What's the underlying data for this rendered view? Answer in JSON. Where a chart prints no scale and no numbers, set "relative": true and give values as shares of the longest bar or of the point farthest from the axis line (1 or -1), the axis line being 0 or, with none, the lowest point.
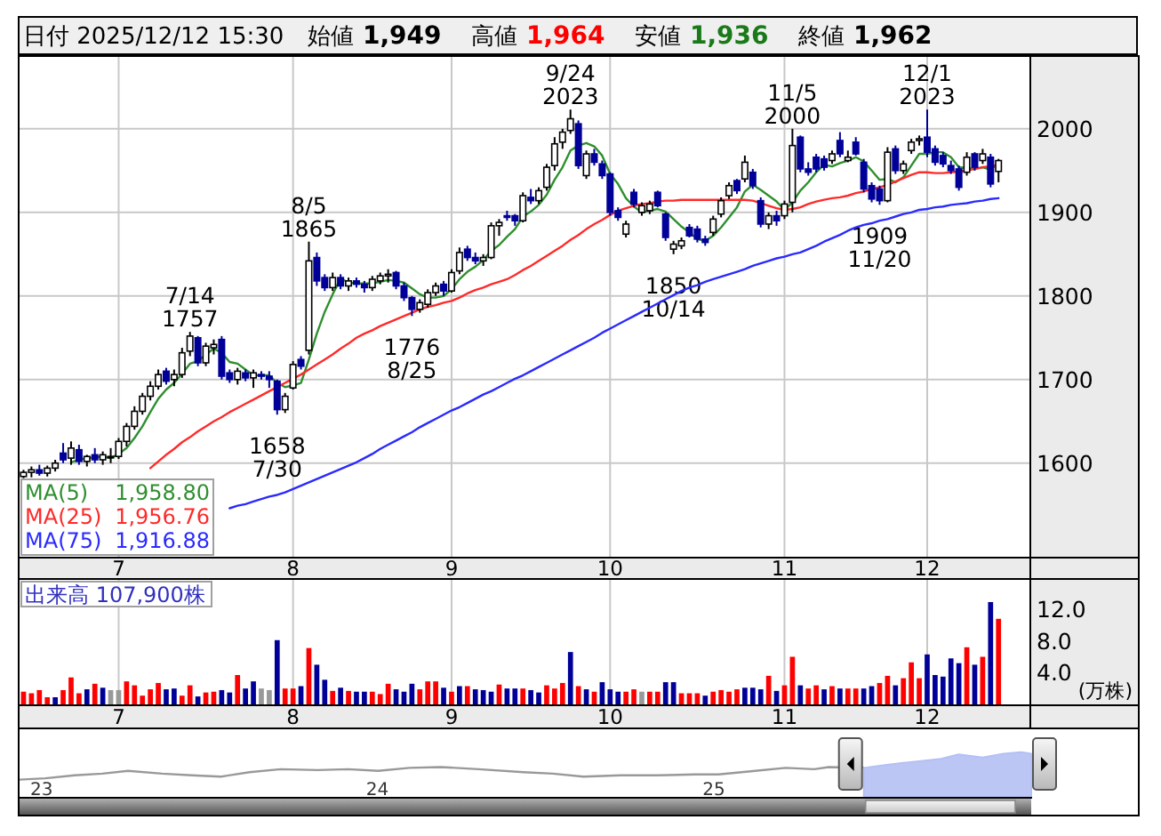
{
  "chart_data": [
    {
      "type": "other",
      "title": "日付 2025/12/12 15:30",
      "annotations": [
        "始値 1,949",
        "高値 1,964",
        "安値 1,936",
        "終値 1,962"
      ],
      "colors": [
        "#000000",
        "#ff0000",
        "#1a7a1a",
        "#000000"
      ]
    },
    {
      "type": "candlestick",
      "categories": [
        null,
        null,
        null,
        null,
        null,
        null,
        null,
        null,
        null,
        null,
        null,
        null,
        "7",
        null,
        null,
        null,
        null,
        null,
        null,
        null,
        null,
        null,
        null,
        null,
        null,
        null,
        null,
        null,
        null,
        null,
        null,
        null,
        null,
        null,
        "8",
        null,
        null,
        null,
        null,
        null,
        null,
        null,
        null,
        null,
        null,
        null,
        null,
        null,
        null,
        null,
        null,
        null,
        null,
        null,
        "9",
        null,
        null,
        null,
        null,
        null,
        null,
        null,
        null,
        null,
        null,
        null,
        null,
        null,
        null,
        null,
        null,
        null,
        null,
        null,
        "10",
        null,
        null,
        null,
        null,
        null,
        null,
        null,
        null,
        null,
        null,
        null,
        null,
        null,
        null,
        null,
        null,
        null,
        null,
        null,
        null,
        null,
        "11",
        null,
        null,
        null,
        null,
        null,
        null,
        null,
        null,
        null,
        null,
        null,
        null,
        null,
        null,
        null,
        null,
        null,
        "12",
        null,
        null,
        null,
        null,
        null,
        null,
        null,
        null,
        null
      ],
      "ohlc": [
        [
          1584,
          1592,
          1582,
          1589
        ],
        [
          1589,
          1596,
          1583,
          1592
        ],
        [
          1592,
          1598,
          1585,
          1588
        ],
        [
          1588,
          1597,
          1584,
          1594
        ],
        [
          1594,
          1604,
          1590,
          1600
        ],
        [
          1612,
          1624,
          1600,
          1604
        ],
        [
          1606,
          1626,
          1598,
          1618
        ],
        [
          1616,
          1622,
          1598,
          1602
        ],
        [
          1602,
          1610,
          1596,
          1608
        ],
        [
          1610,
          1618,
          1600,
          1604
        ],
        [
          1604,
          1614,
          1598,
          1610
        ],
        [
          1608,
          1618,
          1600,
          1608
        ],
        [
          1608,
          1630,
          1605,
          1626
        ],
        [
          1626,
          1648,
          1620,
          1644
        ],
        [
          1644,
          1668,
          1640,
          1662
        ],
        [
          1662,
          1684,
          1658,
          1680
        ],
        [
          1680,
          1698,
          1675,
          1692
        ],
        [
          1692,
          1712,
          1688,
          1706
        ],
        [
          1710,
          1714,
          1694,
          1698
        ],
        [
          1700,
          1712,
          1692,
          1706
        ],
        [
          1706,
          1738,
          1702,
          1732
        ],
        [
          1734,
          1757,
          1728,
          1752
        ],
        [
          1750,
          1752,
          1716,
          1720
        ],
        [
          1720,
          1744,
          1716,
          1740
        ],
        [
          1738,
          1748,
          1730,
          1742
        ],
        [
          1748,
          1752,
          1700,
          1704
        ],
        [
          1708,
          1712,
          1696,
          1700
        ],
        [
          1700,
          1714,
          1694,
          1710
        ],
        [
          1708,
          1712,
          1698,
          1702
        ],
        [
          1702,
          1712,
          1690,
          1708
        ],
        [
          1706,
          1710,
          1700,
          1704
        ],
        [
          1704,
          1710,
          1690,
          1700
        ],
        [
          1698,
          1700,
          1658,
          1664
        ],
        [
          1664,
          1684,
          1660,
          1680
        ],
        [
          1690,
          1722,
          1688,
          1718
        ],
        [
          1724,
          1728,
          1712,
          1716
        ],
        [
          1735,
          1865,
          1730,
          1842
        ],
        [
          1846,
          1852,
          1812,
          1818
        ],
        [
          1822,
          1826,
          1806,
          1810
        ],
        [
          1810,
          1828,
          1806,
          1822
        ],
        [
          1822,
          1826,
          1808,
          1812
        ],
        [
          1812,
          1822,
          1806,
          1818
        ],
        [
          1818,
          1822,
          1810,
          1814
        ],
        [
          1814,
          1818,
          1804,
          1810
        ],
        [
          1810,
          1824,
          1806,
          1820
        ],
        [
          1818,
          1828,
          1814,
          1824
        ],
        [
          1824,
          1832,
          1816,
          1826
        ],
        [
          1828,
          1830,
          1808,
          1812
        ],
        [
          1812,
          1816,
          1794,
          1798
        ],
        [
          1798,
          1800,
          1776,
          1784
        ],
        [
          1784,
          1796,
          1780,
          1792
        ],
        [
          1790,
          1808,
          1786,
          1804
        ],
        [
          1804,
          1816,
          1800,
          1812
        ],
        [
          1814,
          1818,
          1800,
          1806
        ],
        [
          1806,
          1832,
          1804,
          1828
        ],
        [
          1830,
          1858,
          1826,
          1852
        ],
        [
          1856,
          1860,
          1842,
          1846
        ],
        [
          1846,
          1852,
          1838,
          1842
        ],
        [
          1842,
          1850,
          1836,
          1846
        ],
        [
          1846,
          1888,
          1844,
          1884
        ],
        [
          1884,
          1892,
          1872,
          1888
        ],
        [
          1896,
          1902,
          1890,
          1894
        ],
        [
          1896,
          1898,
          1884,
          1890
        ],
        [
          1890,
          1924,
          1888,
          1920
        ],
        [
          1918,
          1928,
          1910,
          1914
        ],
        [
          1914,
          1930,
          1910,
          1926
        ],
        [
          1930,
          1958,
          1926,
          1954
        ],
        [
          1956,
          1990,
          1950,
          1982
        ],
        [
          1984,
          2000,
          1976,
          1996
        ],
        [
          1998,
          2023,
          1994,
          2012
        ],
        [
          2006,
          2010,
          1952,
          1956
        ],
        [
          1944,
          1974,
          1940,
          1970
        ],
        [
          1970,
          1976,
          1956,
          1960
        ],
        [
          1958,
          1962,
          1940,
          1944
        ],
        [
          1946,
          1948,
          1896,
          1900
        ],
        [
          1902,
          1906,
          1890,
          1894
        ],
        [
          1874,
          1890,
          1870,
          1886
        ],
        [
          1924,
          1928,
          1906,
          1910
        ],
        [
          1900,
          1912,
          1896,
          1908
        ],
        [
          1902,
          1914,
          1898,
          1910
        ],
        [
          1924,
          1926,
          1906,
          1908
        ],
        [
          1898,
          1900,
          1866,
          1870
        ],
        [
          1856,
          1866,
          1850,
          1862
        ],
        [
          1860,
          1870,
          1856,
          1866
        ],
        [
          1882,
          1886,
          1870,
          1872
        ],
        [
          1880,
          1884,
          1864,
          1868
        ],
        [
          1868,
          1872,
          1860,
          1864
        ],
        [
          1876,
          1896,
          1872,
          1892
        ],
        [
          1898,
          1918,
          1894,
          1914
        ],
        [
          1920,
          1936,
          1916,
          1932
        ],
        [
          1938,
          1940,
          1922,
          1926
        ],
        [
          1940,
          1968,
          1936,
          1960
        ],
        [
          1948,
          1952,
          1928,
          1932
        ],
        [
          1914,
          1918,
          1882,
          1886
        ],
        [
          1886,
          1900,
          1880,
          1896
        ],
        [
          1896,
          1902,
          1884,
          1890
        ],
        [
          1896,
          1914,
          1892,
          1910
        ],
        [
          1912,
          2000,
          1900,
          1980
        ],
        [
          1990,
          1992,
          1948,
          1952
        ],
        [
          1952,
          1960,
          1944,
          1948
        ],
        [
          1966,
          1970,
          1948,
          1952
        ],
        [
          1964,
          1968,
          1950,
          1954
        ],
        [
          1962,
          1974,
          1958,
          1970
        ],
        [
          1986,
          1996,
          1966,
          1970
        ],
        [
          1962,
          1974,
          1960,
          1966
        ],
        [
          1984,
          1990,
          1968,
          1970
        ],
        [
          1960,
          1964,
          1924,
          1928
        ],
        [
          1932,
          1936,
          1912,
          1916
        ],
        [
          1928,
          1932,
          1909,
          1914
        ],
        [
          1914,
          1978,
          1912,
          1972
        ],
        [
          1976,
          1980,
          1946,
          1950
        ],
        [
          1950,
          1962,
          1946,
          1958
        ],
        [
          1974,
          1988,
          1970,
          1984
        ],
        [
          1986,
          1992,
          1980,
          1988
        ],
        [
          1990,
          2023,
          1966,
          1972
        ],
        [
          1976,
          1980,
          1956,
          1960
        ],
        [
          1968,
          1972,
          1954,
          1958
        ],
        [
          1956,
          1962,
          1946,
          1950
        ],
        [
          1952,
          1956,
          1926,
          1930
        ],
        [
          1948,
          1972,
          1944,
          1966
        ],
        [
          1970,
          1972,
          1950,
          1954
        ],
        [
          1962,
          1976,
          1958,
          1970
        ],
        [
          1966,
          1970,
          1930,
          1934
        ],
        [
          1949,
          1964,
          1936,
          1962
        ]
      ],
      "series": [
        {
          "type": "line",
          "name": "MA(5) 1,958.80",
          "color": "#2f8f2f",
          "values": [
            null,
            null,
            null,
            null,
            null,
            null,
            1601,
            1604,
            1606,
            1607,
            1608,
            1606,
            1611,
            1618,
            1630,
            1644,
            1661,
            1677,
            1688,
            1696,
            1707,
            1719,
            1722,
            1730,
            1737,
            1732,
            1721,
            1719,
            1712,
            1705,
            1705,
            1705,
            1696,
            1691,
            1693,
            1696,
            1724,
            1755,
            1781,
            1802,
            1821,
            1816,
            1815,
            1815,
            1815,
            1817,
            1819,
            1818,
            1816,
            1809,
            1802,
            1798,
            1798,
            1800,
            1808,
            1820,
            1829,
            1835,
            1843,
            1854,
            1861,
            1871,
            1880,
            1895,
            1901,
            1909,
            1921,
            1939,
            1954,
            1974,
            1980,
            1983,
            1979,
            1968,
            1946,
            1934,
            1917,
            1907,
            1900,
            1902,
            1904,
            1901,
            1892,
            1883,
            1876,
            1868,
            1866,
            1872,
            1882,
            1894,
            1906,
            1925,
            1933,
            1927,
            1920,
            1913,
            1903,
            1912,
            1926,
            1936,
            1948,
            1957,
            1955,
            1959,
            1962,
            1966,
            1961,
            1950,
            1939,
            1940,
            1936,
            1942,
            1956,
            1970,
            1970,
            1972,
            1972,
            1966,
            1954,
            1953,
            1952,
            1954,
            1951,
            1959
          ]
        },
        {
          "type": "line",
          "name": "MA(25) 1,956.76",
          "color": "#ff2a2a",
          "values": [
            null,
            null,
            null,
            null,
            null,
            null,
            null,
            null,
            null,
            null,
            null,
            null,
            null,
            null,
            null,
            null,
            1594,
            1602,
            1610,
            1617,
            1625,
            1631,
            1638,
            1644,
            1650,
            1655,
            1661,
            1666,
            1671,
            1676,
            1681,
            1686,
            1691,
            1696,
            1701,
            1706,
            1712,
            1718,
            1724,
            1730,
            1737,
            1743,
            1750,
            1755,
            1759,
            1764,
            1768,
            1772,
            1776,
            1780,
            1784,
            1787,
            1789,
            1792,
            1794,
            1798,
            1803,
            1807,
            1810,
            1814,
            1817,
            1820,
            1825,
            1831,
            1836,
            1842,
            1848,
            1854,
            1860,
            1867,
            1873,
            1880,
            1886,
            1891,
            1897,
            1902,
            1905,
            1908,
            1910,
            1911,
            1913,
            1914,
            1914,
            1915,
            1915,
            1915,
            1915,
            1915,
            1915,
            1915,
            1915,
            1915,
            1914,
            1911,
            1908,
            1905,
            1903,
            1904,
            1906,
            1910,
            1913,
            1915,
            1917,
            1918,
            1920,
            1923,
            1925,
            1928,
            1930,
            1933,
            1937,
            1941,
            1945,
            1948,
            1948,
            1947,
            1947,
            1948,
            1949,
            1950,
            1952,
            1954,
            1955,
            1957
          ]
        },
        {
          "type": "line",
          "name": "MA(75) 1,916.88",
          "color": "#2a2aff",
          "values": [
            null,
            null,
            null,
            null,
            null,
            null,
            null,
            null,
            null,
            null,
            null,
            null,
            null,
            null,
            null,
            null,
            null,
            null,
            null,
            null,
            null,
            null,
            null,
            null,
            null,
            null,
            1546,
            1549,
            1551,
            1554,
            1557,
            1560,
            1562,
            1565,
            1569,
            1573,
            1577,
            1581,
            1585,
            1589,
            1593,
            1597,
            1601,
            1606,
            1611,
            1617,
            1622,
            1627,
            1632,
            1637,
            1643,
            1648,
            1653,
            1658,
            1663,
            1667,
            1672,
            1677,
            1682,
            1686,
            1691,
            1696,
            1701,
            1705,
            1710,
            1715,
            1720,
            1725,
            1730,
            1735,
            1740,
            1745,
            1750,
            1756,
            1761,
            1766,
            1771,
            1776,
            1781,
            1786,
            1791,
            1796,
            1801,
            1806,
            1810,
            1813,
            1817,
            1820,
            1823,
            1826,
            1829,
            1832,
            1836,
            1839,
            1842,
            1845,
            1847,
            1850,
            1852,
            1856,
            1860,
            1865,
            1869,
            1873,
            1878,
            1882,
            1885,
            1887,
            1890,
            1892,
            1895,
            1898,
            1900,
            1903,
            1904,
            1906,
            1907,
            1909,
            1910,
            1911,
            1913,
            1914,
            1916,
            1917
          ]
        }
      ],
      "annotations": [
        {
          "text": "7/14\n1757",
          "y": 1757
        },
        {
          "text": "1658\n7/30",
          "y": 1658
        },
        {
          "text": "8/5\n1865",
          "y": 1865
        },
        {
          "text": "1776\n8/25",
          "y": 1776
        },
        {
          "text": "9/24\n2023",
          "y": 2023
        },
        {
          "text": "1850\n10/14",
          "y": 1850
        },
        {
          "text": "11/5\n2000",
          "y": 2000
        },
        {
          "text": "1909\n11/20",
          "y": 1909
        },
        {
          "text": "12/1\n2023",
          "y": 2023
        }
      ],
      "ylim": [
        1488,
        2086
      ],
      "yticks": [
        1600,
        1700,
        1800,
        1900,
        2000
      ],
      "grid": true,
      "legend": "bottom left"
    },
    {
      "type": "bar",
      "title": "出来高 107,900株",
      "ylabel": "(万株)",
      "categories": [
        null,
        null,
        null,
        null,
        null,
        null,
        null,
        null,
        null,
        null,
        null,
        null,
        "7",
        null,
        null,
        null,
        null,
        null,
        null,
        null,
        null,
        null,
        null,
        null,
        null,
        null,
        null,
        null,
        null,
        null,
        null,
        null,
        null,
        null,
        "8",
        null,
        null,
        null,
        null,
        null,
        null,
        null,
        null,
        null,
        null,
        null,
        null,
        null,
        null,
        null,
        null,
        null,
        null,
        null,
        "9",
        null,
        null,
        null,
        null,
        null,
        null,
        null,
        null,
        null,
        null,
        null,
        null,
        null,
        null,
        null,
        null,
        null,
        null,
        null,
        "10",
        null,
        null,
        null,
        null,
        null,
        null,
        null,
        null,
        null,
        null,
        null,
        null,
        null,
        null,
        null,
        null,
        null,
        null,
        null,
        null,
        null,
        "11",
        null,
        null,
        null,
        null,
        null,
        null,
        null,
        null,
        null,
        null,
        null,
        null,
        null,
        null,
        null,
        null,
        null,
        "12",
        null,
        null,
        null,
        null,
        null,
        null,
        null,
        null,
        null
      ],
      "values": [
        1.6,
        1.4,
        1.8,
        0.9,
        0.9,
        1.8,
        3.4,
        1.4,
        1.9,
        2.6,
        2.1,
        1.8,
        1.8,
        2.9,
        2.4,
        1.1,
        1.9,
        2.7,
        1.9,
        2.0,
        1.1,
        2.4,
        1.0,
        1.5,
        1.6,
        1.8,
        1.5,
        3.7,
        2.0,
        2.9,
        2.0,
        1.8,
        8.1,
        2.0,
        2.0,
        2.3,
        7.1,
        5.0,
        3.1,
        1.7,
        2.1,
        1.7,
        1.6,
        1.6,
        1.6,
        1.3,
        2.6,
        1.9,
        1.6,
        2.6,
        1.9,
        2.9,
        2.9,
        2.1,
        1.6,
        2.3,
        2.3,
        1.9,
        1.8,
        1.6,
        2.5,
        2.0,
        2.0,
        2.0,
        1.8,
        1.5,
        2.4,
        2.0,
        2.7,
        6.6,
        2.3,
        1.9,
        1.6,
        2.8,
        1.9,
        1.6,
        1.6,
        1.9,
        1.6,
        1.6,
        1.6,
        2.8,
        2.8,
        1.4,
        1.4,
        1.4,
        1.1,
        1.6,
        1.8,
        1.6,
        1.9,
        2.1,
        2.1,
        1.9,
        3.6,
        1.7,
        2.4,
        6.0,
        2.4,
        2.0,
        2.4,
        1.9,
        2.3,
        2.0,
        2.0,
        2.0,
        2.0,
        2.3,
        2.7,
        3.6,
        2.4,
        3.3,
        5.3,
        3.3,
        6.3,
        3.7,
        3.5,
        5.8,
        5.2,
        7.2,
        5.0,
        6.0,
        12.9,
        10.79
      ],
      "colors": [
        "#ff0000",
        "#ff0000",
        "#ff0000",
        "#ff0000",
        "#000099",
        "#ff0000",
        "#ff0000",
        "#ff0000",
        "#000099",
        "#ff0000",
        "#000099",
        "#999999",
        "#999999",
        "#ff0000",
        "#ff0000",
        "#ff0000",
        "#ff0000",
        "#ff0000",
        "#000099",
        "#000099",
        "#ff0000",
        "#ff0000",
        "#000099",
        "#ff0000",
        "#ff0000",
        "#000099",
        "#000099",
        "#ff0000",
        "#000099",
        "#000099",
        "#999999",
        "#999999",
        "#000099",
        "#ff0000",
        "#ff0000",
        "#000099",
        "#ff0000",
        "#000099",
        "#000099",
        "#ff0000",
        "#000099",
        "#ff0000",
        "#000099",
        "#000099",
        "#ff0000",
        "#ff0000",
        "#ff0000",
        "#000099",
        "#000099",
        "#000099",
        "#ff0000",
        "#ff0000",
        "#ff0000",
        "#000099",
        "#ff0000",
        "#000099",
        "#ff0000",
        "#000099",
        "#000099",
        "#000099",
        "#ff0000",
        "#000099",
        "#000099",
        "#ff0000",
        "#000099",
        "#000099",
        "#ff0000",
        "#ff0000",
        "#ff0000",
        "#000099",
        "#ff0000",
        "#000099",
        "#ff0000",
        "#000099",
        "#000099",
        "#000099",
        "#ff0000",
        "#ff0000",
        "#999999",
        "#ff0000",
        "#ff0000",
        "#000099",
        "#000099",
        "#ff0000",
        "#ff0000",
        "#ff0000",
        "#000099",
        "#ff0000",
        "#ff0000",
        "#ff0000",
        "#ff0000",
        "#000099",
        "#000099",
        "#000099",
        "#ff0000",
        "#000099",
        "#ff0000",
        "#ff0000",
        "#000099",
        "#ff0000",
        "#ff0000",
        "#000099",
        "#ff0000",
        "#000099",
        "#ff0000",
        "#ff0000",
        "#000099",
        "#000099",
        "#ff0000",
        "#ff0000",
        "#000099",
        "#ff0000",
        "#ff0000",
        "#ff0000",
        "#000099",
        "#000099",
        "#000099",
        "#000099",
        "#000099",
        "#ff0000",
        "#000099",
        "#ff0000",
        "#000099",
        "#ff0000"
      ],
      "ylim": [
        0,
        15.7
      ],
      "yticks": [
        {
          "value": 4,
          "label": "4.0"
        },
        {
          "value": 8,
          "label": "8.0"
        },
        {
          "value": 12,
          "label": "12.0"
        }
      ],
      "grid": "x"
    },
    {
      "type": "line",
      "relative": true,
      "xlim": [
        "2022-12-08",
        "2025-12-12"
      ],
      "xticks": [
        {
          "value": "2023-01-01",
          "label": "23"
        },
        {
          "value": "2024-01-01",
          "label": "24"
        },
        {
          "value": "2025-01-01",
          "label": "25"
        }
      ],
      "series": [
        {
          "color": "#999999",
          "x": [
            "2022-12-08",
            "2023-01-05",
            "2023-02-06",
            "2023-03-08",
            "2023-04-05",
            "2023-05-12",
            "2023-06-13",
            "2023-07-15",
            "2023-08-15",
            "2023-09-18",
            "2023-10-28",
            "2023-11-30",
            "2024-01-02",
            "2024-02-05",
            "2024-03-10",
            "2024-04-20",
            "2024-06-08",
            "2024-07-10",
            "2024-08-12",
            "2024-09-22",
            "2024-11-01",
            "2024-12-12",
            "2025-01-06",
            "2025-02-15",
            "2025-03-20",
            "2025-04-20",
            "2025-05-06",
            "2025-06-13"
          ],
          "values": [
            0,
            0.05,
            0.16,
            0.22,
            0.32,
            0.22,
            0.16,
            0.11,
            0.27,
            0.38,
            0.35,
            0.38,
            0.32,
            0.43,
            0.46,
            0.38,
            0.27,
            0.22,
            0.11,
            0.16,
            0.16,
            0.19,
            0.19,
            0.32,
            0.43,
            0.38,
            0.46,
            0.43
          ]
        },
        {
          "type": "area",
          "color": "#b4c0f4",
          "x": [
            "2025-06-13",
            "2025-07-08",
            "2025-08-05",
            "2025-09-05",
            "2025-09-24",
            "2025-10-20",
            "2025-11-12",
            "2025-12-01",
            "2025-12-12"
          ],
          "values": [
            0.43,
            0.54,
            0.65,
            0.76,
            0.92,
            0.81,
            0.95,
            1,
            0.95
          ]
        }
      ]
    }
  ]
}
